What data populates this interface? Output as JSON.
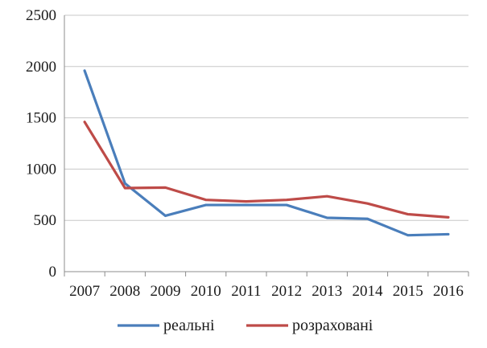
{
  "chart_data": {
    "type": "line",
    "title": "",
    "xlabel": "",
    "ylabel": "",
    "categories": [
      "2007",
      "2008",
      "2009",
      "2010",
      "2011",
      "2012",
      "2013",
      "2014",
      "2015",
      "2016"
    ],
    "ylim": [
      0,
      2500
    ],
    "yticks": [
      0,
      500,
      1000,
      1500,
      2000,
      2500
    ],
    "grid": "horizontal",
    "legend_position": "bottom",
    "series": [
      {
        "name": "реальні",
        "color": "#4a7ebb",
        "values": [
          1960,
          860,
          545,
          650,
          650,
          650,
          525,
          515,
          355,
          365
        ]
      },
      {
        "name": "розраховані",
        "color": "#be4b48",
        "values": [
          1460,
          815,
          820,
          700,
          685,
          700,
          735,
          665,
          560,
          530
        ]
      }
    ]
  }
}
